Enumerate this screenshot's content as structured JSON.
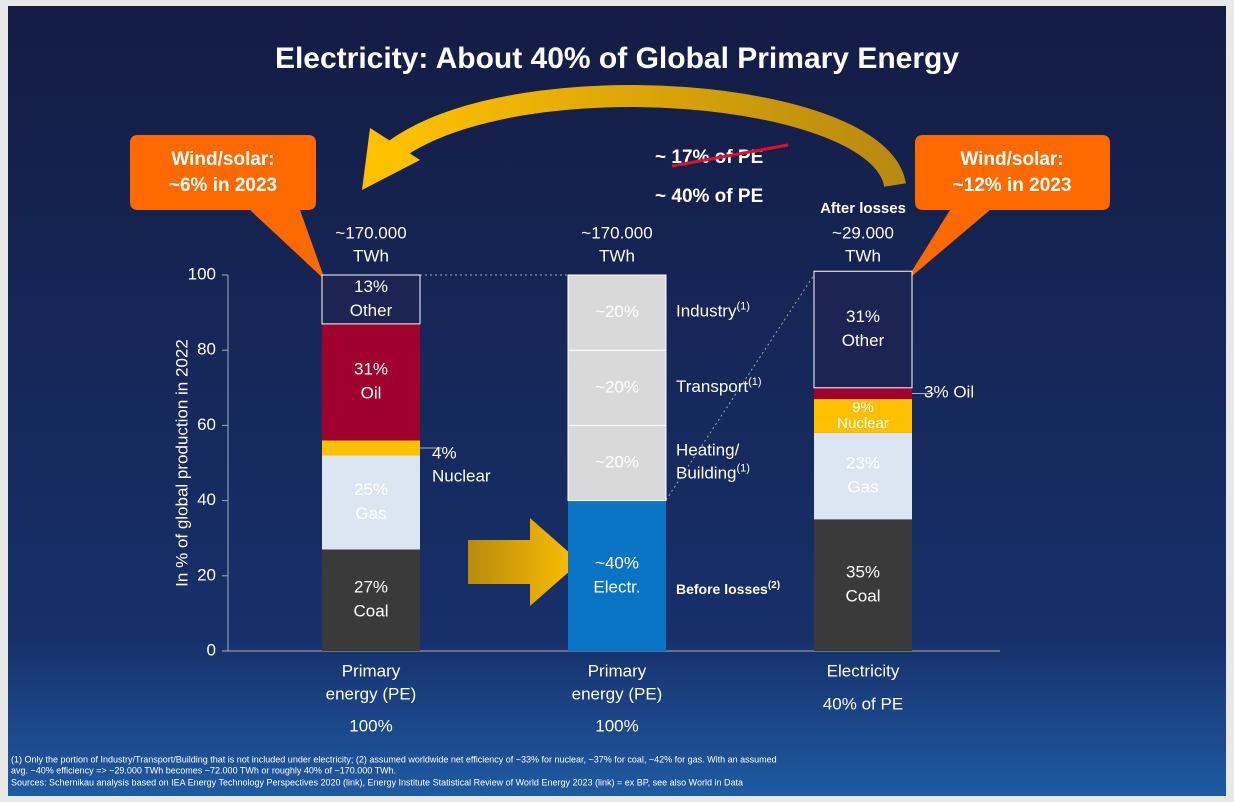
{
  "title": "Electricity: About 40% of Global Primary Energy",
  "callouts": [
    {
      "lines": [
        "Wind/solar:",
        "~6% in 2023"
      ]
    },
    {
      "lines": [
        "Wind/solar:",
        "~12% in 2023"
      ]
    }
  ],
  "annotations": {
    "struck": "~ 17% of PE",
    "current": "~ 40% of PE"
  },
  "footnotes": [
    "(1) Only the portion of Industry/Transport/Building that is not included under electricity; (2) assumed worldwide net efficiency of ~33% for nuclear, ~37% for coal, ~42% for gas. With an assumed",
    "avg. ~40% efficiency => ~29.000 TWh becomes ~72.000 TWh or roughly 40% of ~170.000 TWh.",
    "Sources: Schernikau analysis based on IEA Energy Technology Perspectives 2020 (link), Energy Institute Statistical Review of World Energy 2023 (link) = ex BP, see also World in Data"
  ],
  "chart_data": {
    "type": "stacked_bar",
    "y_label": "In % of global production in 2022",
    "ylim": [
      0,
      100
    ],
    "yticks": [
      0,
      20,
      40,
      60,
      80,
      100
    ],
    "bars": [
      {
        "top_lines": [
          "~170.000",
          "TWh"
        ],
        "label_lines": [
          "Primary",
          "energy (PE)"
        ],
        "sublabel": "100%",
        "segments": [
          {
            "name": "Coal",
            "value": 27,
            "value_label": "27%",
            "color": "#3a3a3a"
          },
          {
            "name": "Gas",
            "value": 25,
            "value_label": "25%",
            "color": "#dce6f2"
          },
          {
            "name": "Nuclear",
            "value": 4,
            "value_label": "4%",
            "color": "#ffc000"
          },
          {
            "name": "Oil",
            "value": 31,
            "value_label": "31%",
            "color": "#a0002e"
          },
          {
            "name": "Other",
            "value": 13,
            "value_label": "13%",
            "color": "#1b2453"
          }
        ]
      },
      {
        "top_lines": [
          "~170.000",
          "TWh"
        ],
        "label_lines": [
          "Primary",
          "energy (PE)"
        ],
        "sublabel": "100%",
        "segments": [
          {
            "name": "Electr.",
            "value": 40,
            "value_label": "~40%",
            "color": "#0a74c4",
            "annotation": "Before losses",
            "note": "(2)"
          },
          {
            "name": "Heating/",
            "name2": "Building",
            "note": "(1)",
            "value": 20,
            "value_label": "~20%",
            "color": "#d9d9d9",
            "side": true
          },
          {
            "name": "Transport",
            "note": "(1)",
            "value": 20,
            "value_label": "~20%",
            "color": "#d9d9d9",
            "side": true
          },
          {
            "name": "Industry",
            "note": "(1)",
            "value": 20,
            "value_label": "~20%",
            "color": "#d9d9d9",
            "side": true
          }
        ]
      },
      {
        "top_head": "After losses",
        "top_lines": [
          "~29.000",
          "TWh"
        ],
        "label_lines": [
          "Electricity"
        ],
        "sublabel": "40% of PE",
        "segments": [
          {
            "name": "Coal",
            "value": 35,
            "value_label": "35%",
            "color": "#3a3a3a"
          },
          {
            "name": "Gas",
            "value": 23,
            "value_label": "23%",
            "color": "#dce6f2"
          },
          {
            "name": "Nuclear",
            "value": 9,
            "value_label": "9%",
            "color": "#ffc000"
          },
          {
            "name": "Oil",
            "value": 3,
            "value_label": "3%",
            "color": "#a0002e"
          },
          {
            "name": "Other",
            "value": 31,
            "value_label": "31%",
            "color": "#1b2453"
          }
        ]
      }
    ]
  }
}
